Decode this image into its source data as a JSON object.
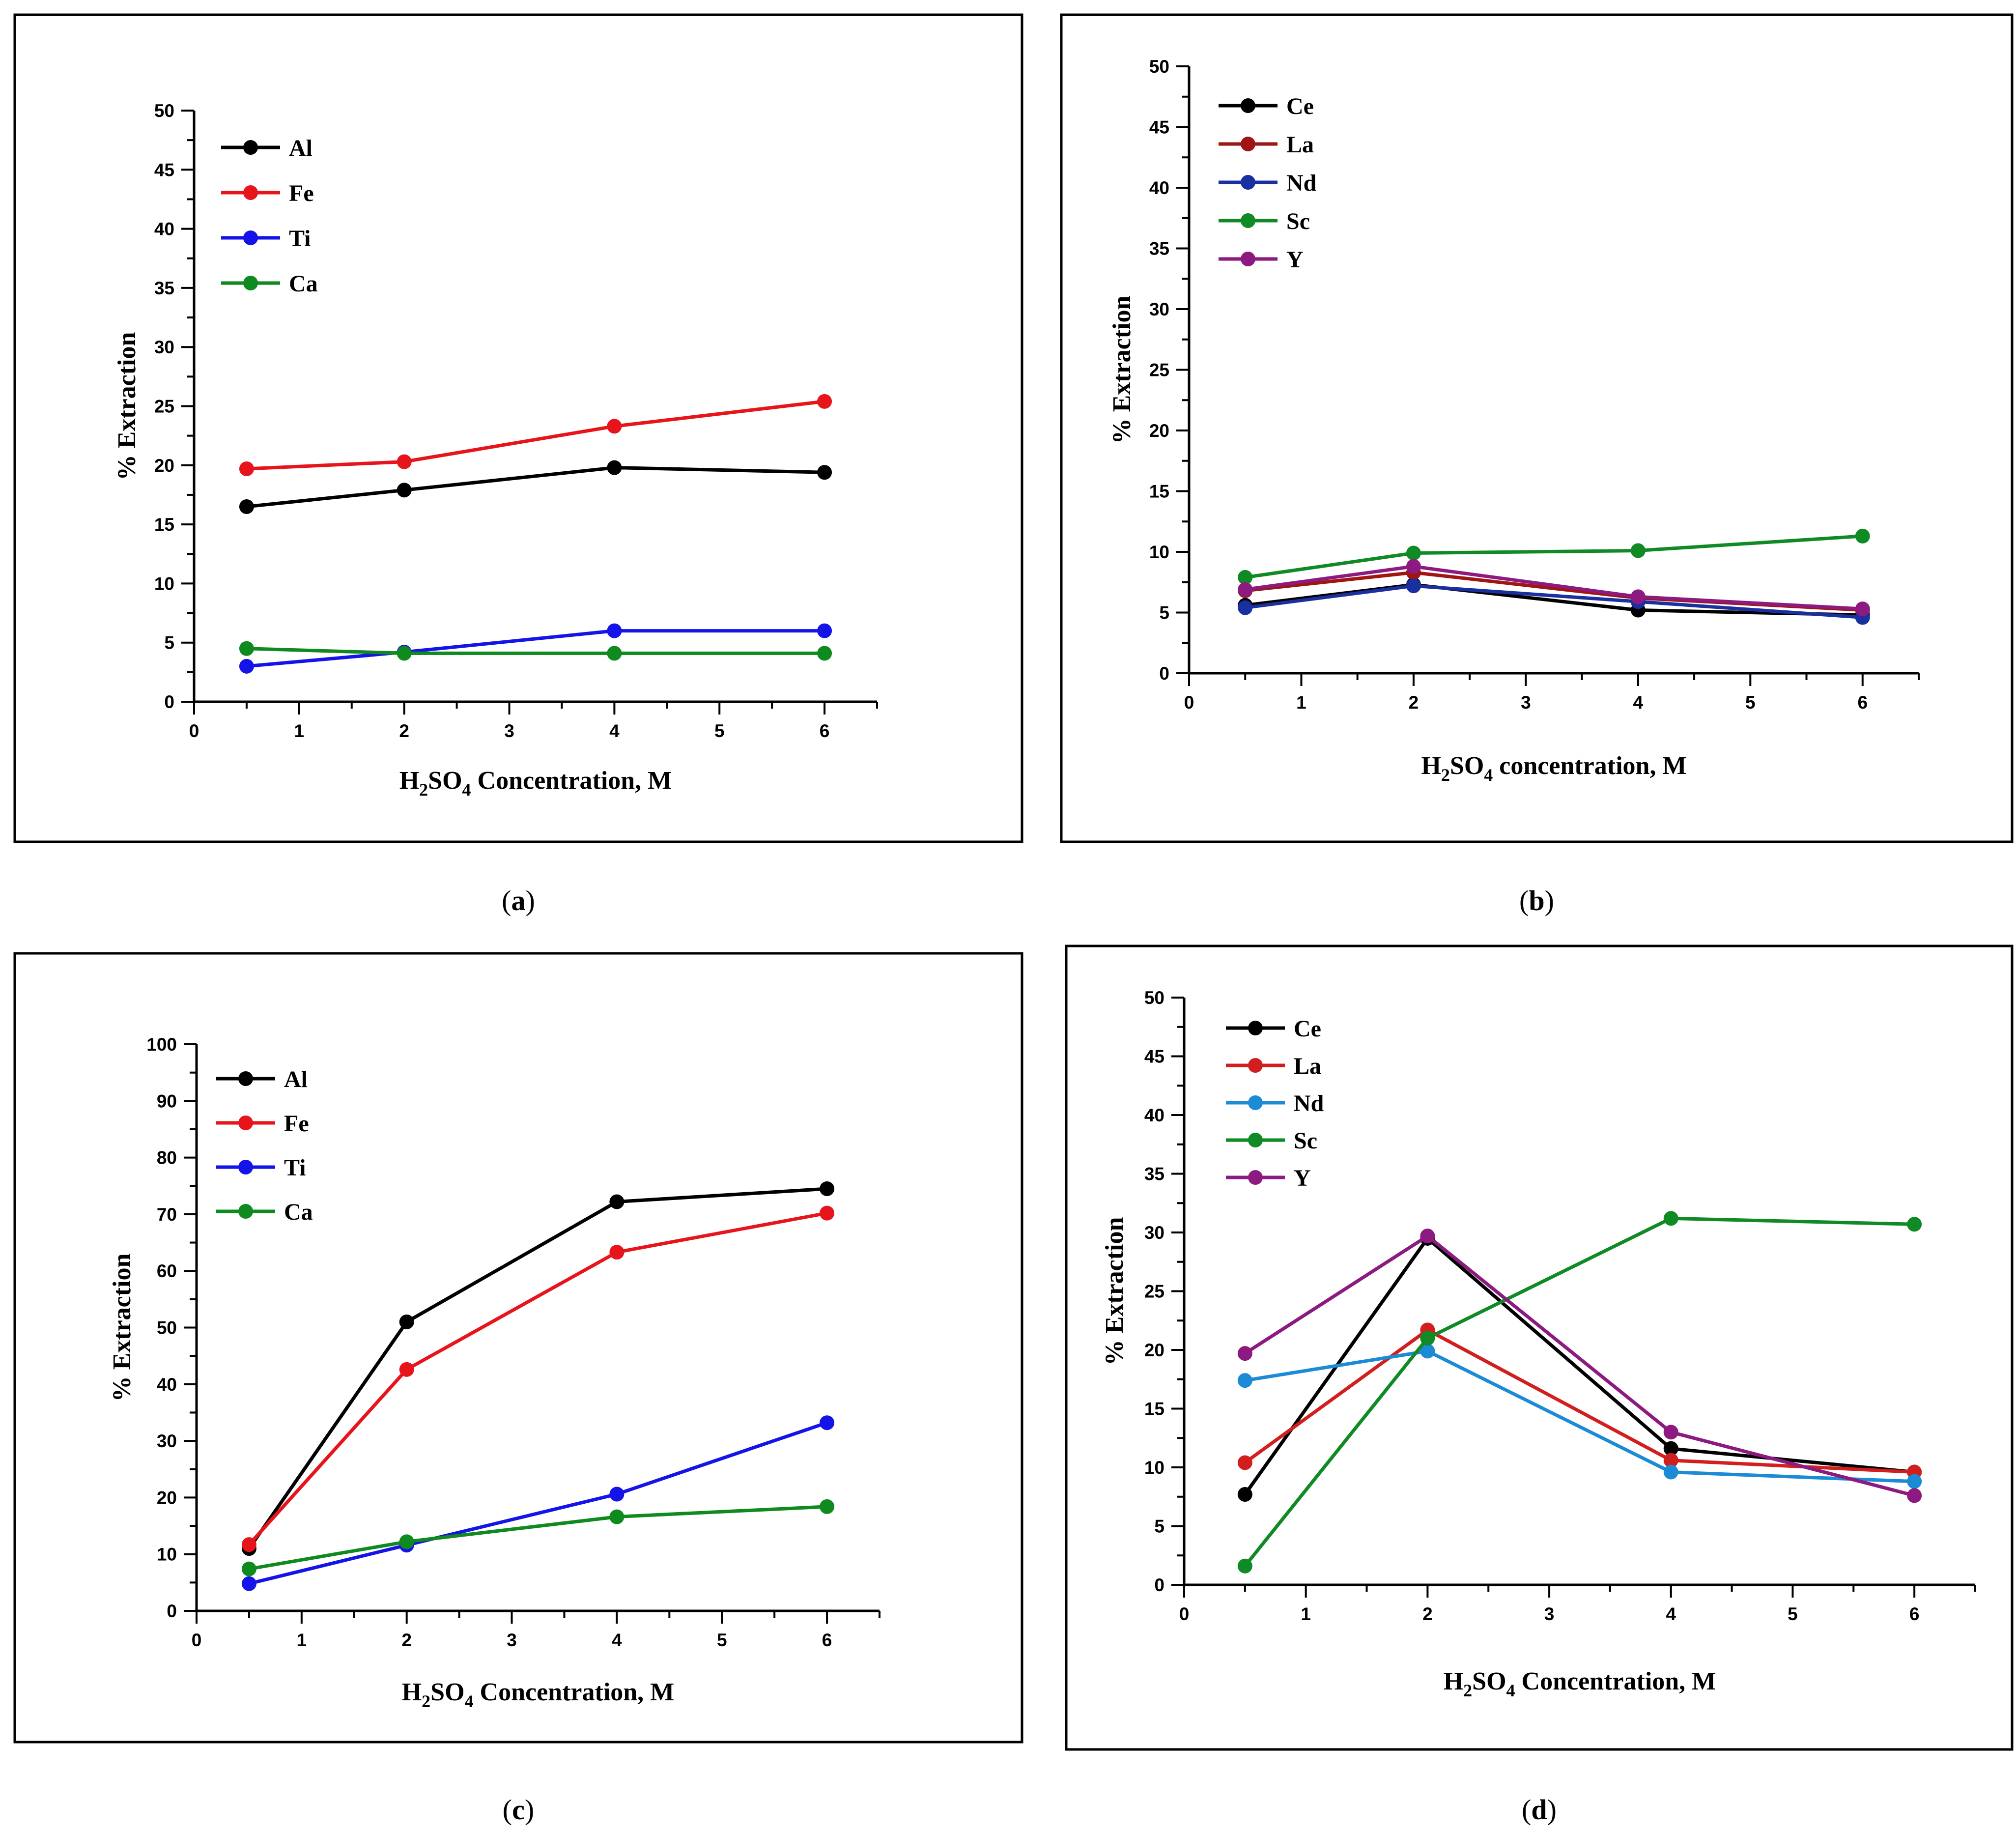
{
  "chart_data": [
    {
      "id": "a",
      "type": "line",
      "caption_letter": "a",
      "title": "",
      "xlabel": {
        "main": "H",
        "sub1": "2",
        "mid": "SO",
        "sub2": "4",
        "tail": " Concentration, M"
      },
      "ylabel": "% Extraction",
      "xlim": [
        0,
        6.5
      ],
      "ylim": [
        0,
        50
      ],
      "xticks": [
        "0",
        "1",
        "2",
        "3",
        "4",
        "5",
        "6"
      ],
      "yticks": [
        "0",
        "5",
        "10",
        "15",
        "20",
        "25",
        "30",
        "35",
        "40",
        "45",
        "50"
      ],
      "x": [
        0.5,
        2,
        4,
        6
      ],
      "series": [
        {
          "name": "Al",
          "color": "#000000",
          "values": [
            16.5,
            17.9,
            19.8,
            19.4
          ]
        },
        {
          "name": "Fe",
          "color": "#e8141c",
          "values": [
            19.7,
            20.3,
            23.3,
            25.4
          ]
        },
        {
          "name": "Ti",
          "color": "#1414e8",
          "values": [
            3.0,
            4.2,
            6.0,
            6.0
          ]
        },
        {
          "name": "Ca",
          "color": "#0e8a1e",
          "values": [
            4.5,
            4.1,
            4.1,
            4.1
          ]
        }
      ]
    },
    {
      "id": "b",
      "type": "line",
      "caption_letter": "b",
      "title": "",
      "xlabel": {
        "main": "H",
        "sub1": "2",
        "mid": "SO",
        "sub2": "4",
        "tail": " concentration, M"
      },
      "ylabel": "% Extraction",
      "xlim": [
        0,
        6.5
      ],
      "ylim": [
        0,
        50
      ],
      "xticks": [
        "0",
        "1",
        "2",
        "3",
        "4",
        "5",
        "6"
      ],
      "yticks": [
        "0",
        "5",
        "10",
        "15",
        "20",
        "25",
        "30",
        "35",
        "40",
        "45",
        "50"
      ],
      "x": [
        0.5,
        2,
        4,
        6
      ],
      "series": [
        {
          "name": "Ce",
          "color": "#000000",
          "values": [
            5.6,
            7.3,
            5.2,
            4.8
          ]
        },
        {
          "name": "La",
          "color": "#a01414",
          "values": [
            6.8,
            8.3,
            6.2,
            5.2
          ]
        },
        {
          "name": "Nd",
          "color": "#1a2fa0",
          "values": [
            5.4,
            7.2,
            5.9,
            4.6
          ]
        },
        {
          "name": "Sc",
          "color": "#108a25",
          "values": [
            7.9,
            9.9,
            10.1,
            11.3
          ]
        },
        {
          "name": "Y",
          "color": "#8c1a80",
          "values": [
            6.9,
            8.8,
            6.3,
            5.3
          ]
        }
      ]
    },
    {
      "id": "c",
      "type": "line",
      "caption_letter": "c",
      "title": "",
      "xlabel": {
        "main": "H",
        "sub1": "2",
        "mid": "SO",
        "sub2": "4",
        "tail": " Concentration, M"
      },
      "ylabel": "% Extraction",
      "xlim": [
        0,
        6.5
      ],
      "ylim": [
        0,
        100
      ],
      "xticks": [
        "0",
        "1",
        "2",
        "3",
        "4",
        "5",
        "6"
      ],
      "yticks": [
        "0",
        "10",
        "20",
        "30",
        "40",
        "50",
        "60",
        "70",
        "80",
        "90",
        "100"
      ],
      "x": [
        0.5,
        2,
        4,
        6
      ],
      "series": [
        {
          "name": "Al",
          "color": "#000000",
          "values": [
            11.0,
            51.0,
            72.2,
            74.5
          ]
        },
        {
          "name": "Fe",
          "color": "#e8141c",
          "values": [
            11.7,
            42.6,
            63.3,
            70.2
          ]
        },
        {
          "name": "Ti",
          "color": "#1414e8",
          "values": [
            4.8,
            11.6,
            20.6,
            33.2
          ]
        },
        {
          "name": "Ca",
          "color": "#0e8a1e",
          "values": [
            7.4,
            12.2,
            16.6,
            18.4
          ]
        }
      ]
    },
    {
      "id": "d",
      "type": "line",
      "caption_letter": "d",
      "title": "",
      "xlabel": {
        "main": "H",
        "sub1": "2",
        "mid": "SO",
        "sub2": "4",
        "tail": " Concentration, M"
      },
      "ylabel": "% Extraction",
      "xlim": [
        0,
        6.5
      ],
      "ylim": [
        0,
        50
      ],
      "xticks": [
        "0",
        "1",
        "2",
        "3",
        "4",
        "5",
        "6"
      ],
      "yticks": [
        "0",
        "5",
        "10",
        "15",
        "20",
        "25",
        "30",
        "35",
        "40",
        "45",
        "50"
      ],
      "x": [
        0.5,
        2,
        4,
        6
      ],
      "series": [
        {
          "name": "Ce",
          "color": "#000000",
          "values": [
            7.7,
            29.5,
            11.6,
            9.6
          ]
        },
        {
          "name": "La",
          "color": "#d21e1e",
          "values": [
            10.4,
            21.7,
            10.6,
            9.6
          ]
        },
        {
          "name": "Nd",
          "color": "#1c8bd6",
          "values": [
            17.4,
            19.9,
            9.6,
            8.8
          ]
        },
        {
          "name": "Sc",
          "color": "#108a25",
          "values": [
            1.6,
            21.0,
            31.2,
            30.7
          ]
        },
        {
          "name": "Y",
          "color": "#8c1a80",
          "values": [
            19.7,
            29.7,
            13.0,
            7.6
          ]
        }
      ]
    }
  ]
}
